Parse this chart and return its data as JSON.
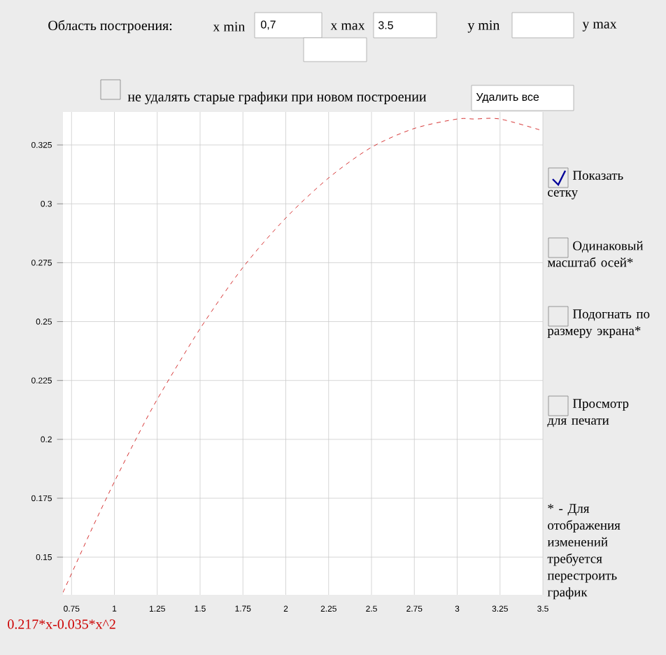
{
  "chart_data": {
    "type": "line",
    "x": [
      0.7,
      0.75,
      0.875,
      1.0,
      1.125,
      1.25,
      1.5,
      1.75,
      2.0,
      2.25,
      2.5,
      2.75,
      3.0,
      3.1,
      3.25,
      3.5
    ],
    "series": [
      {
        "name": "0.217*x-0.035*x^2",
        "color": "#cc0000",
        "values": [
          0.135,
          0.143,
          0.163,
          0.182,
          0.2,
          0.217,
          0.247,
          0.273,
          0.294,
          0.311,
          0.324,
          0.332,
          0.336,
          0.336,
          0.336,
          0.331
        ]
      }
    ],
    "xlim": [
      0.7,
      3.5
    ],
    "xticks": [
      0.75,
      1,
      1.25,
      1.5,
      1.75,
      2,
      2.25,
      2.5,
      2.75,
      3,
      3.25,
      3.5
    ],
    "ylim": [
      0.134,
      0.339
    ],
    "yticks": [
      0.15,
      0.175,
      0.2,
      0.225,
      0.25,
      0.275,
      0.3,
      0.325
    ],
    "grid": true,
    "line_style": "dashed",
    "marker": "none",
    "annotations": [
      "Область построения:",
      "x min",
      "0,7",
      "x max",
      "3.5",
      "y min",
      "y max",
      "не удалять старые графики при новом построении",
      "Удалить все",
      "Показать сетку",
      "Одинаковый масштаб осей*",
      "Подогнать по размеру экрана*",
      "Просмотр для печати",
      "* - Для отображения изменений требуется перестроить график"
    ]
  }
}
